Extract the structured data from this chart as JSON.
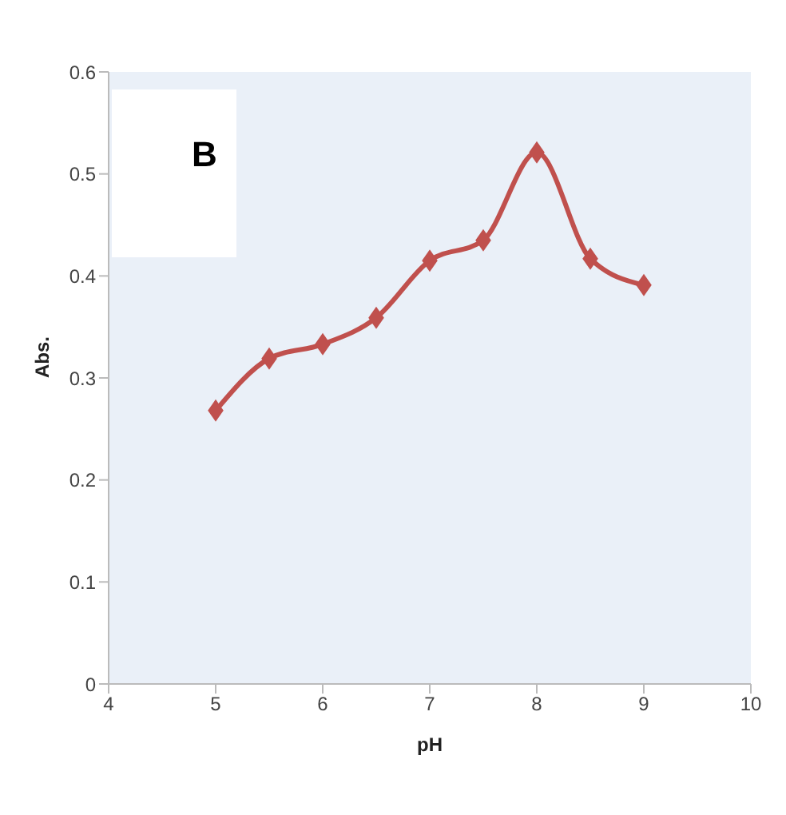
{
  "chart_data": {
    "type": "line",
    "xlabel": "pH",
    "ylabel": "Abs.",
    "annotations": [
      "B"
    ],
    "x": [
      5,
      5.5,
      6,
      6.5,
      7,
      7.5,
      8,
      8.5,
      9
    ],
    "series": [
      {
        "color": "#c0504d",
        "values": [
          0.268,
          0.319,
          0.333,
          0.359,
          0.415,
          0.435,
          0.521,
          0.417,
          0.391
        ]
      }
    ],
    "xlim": [
      4,
      10
    ],
    "xticks": [
      4,
      5,
      6,
      7,
      8,
      9,
      10
    ],
    "ylim": [
      0,
      0.6
    ],
    "yticks": [
      0,
      0.1,
      0.2,
      0.3,
      0.4,
      0.5,
      0.6
    ],
    "grid": false,
    "marker": "diamond",
    "line_style": "solid"
  }
}
